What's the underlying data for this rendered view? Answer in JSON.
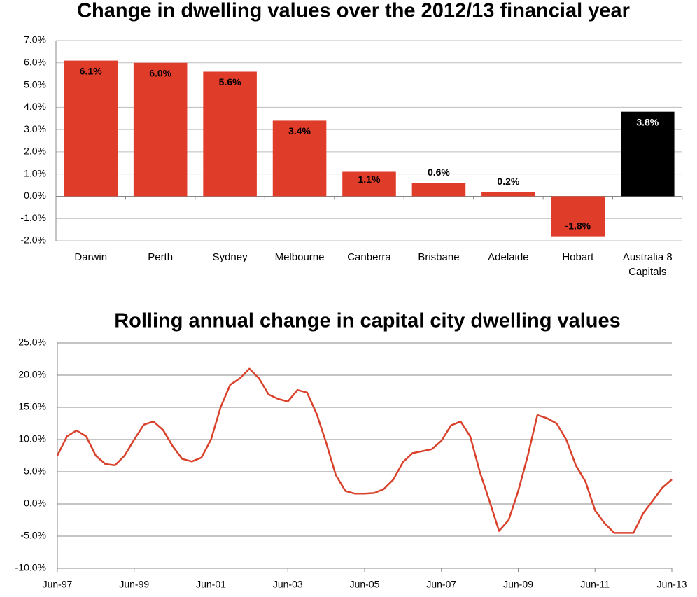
{
  "chart_data": [
    {
      "type": "bar",
      "title": "Change in dwelling values over the 2012/13 financial year",
      "categories": [
        "Darwin",
        "Perth",
        "Sydney",
        "Melbourne",
        "Canberra",
        "Brisbane",
        "Adelaide",
        "Hobart",
        "Australia 8 Capitals"
      ],
      "values": [
        6.1,
        6.0,
        5.6,
        3.4,
        1.1,
        0.6,
        0.2,
        -1.8,
        3.8
      ],
      "value_labels": [
        "6.1%",
        "6.0%",
        "5.6%",
        "3.4%",
        "1.1%",
        "0.6%",
        "0.2%",
        "-1.8%",
        "3.8%"
      ],
      "colors": [
        "#e03c2a",
        "#e03c2a",
        "#e03c2a",
        "#e03c2a",
        "#e03c2a",
        "#e03c2a",
        "#e03c2a",
        "#e03c2a",
        "#000000"
      ],
      "ylim": [
        -2,
        7
      ],
      "yticks": [
        {
          "value": -2,
          "label": "-2.0%"
        },
        {
          "value": -1,
          "label": "-1.0%"
        },
        {
          "value": 0,
          "label": "0.0%"
        },
        {
          "value": 1,
          "label": "1.0%"
        },
        {
          "value": 2,
          "label": "2.0%"
        },
        {
          "value": 3,
          "label": "3.0%"
        },
        {
          "value": 4,
          "label": "4.0%"
        },
        {
          "value": 5,
          "label": "5.0%"
        },
        {
          "value": 6,
          "label": "6.0%"
        },
        {
          "value": 7,
          "label": "7.0%"
        }
      ],
      "grid": true
    },
    {
      "type": "line",
      "title": "Rolling annual change in capital city dwelling values",
      "x": [
        1997.5,
        1997.75,
        1998,
        1998.25,
        1998.5,
        1998.75,
        1999,
        1999.25,
        1999.5,
        1999.75,
        2000,
        2000.25,
        2000.5,
        2000.75,
        2001,
        2001.25,
        2001.5,
        2001.75,
        2002,
        2002.25,
        2002.5,
        2002.75,
        2003,
        2003.25,
        2003.5,
        2003.75,
        2004,
        2004.25,
        2004.5,
        2004.75,
        2005,
        2005.25,
        2005.5,
        2005.75,
        2006,
        2006.25,
        2006.5,
        2006.75,
        2007,
        2007.25,
        2007.5,
        2007.75,
        2008,
        2008.25,
        2008.5,
        2008.75,
        2009,
        2009.25,
        2009.5,
        2009.75,
        2010,
        2010.25,
        2010.5,
        2010.75,
        2011,
        2011.25,
        2011.5,
        2011.75,
        2012,
        2012.25,
        2012.5,
        2012.75,
        2013,
        2013.25,
        2013.5
      ],
      "values": [
        7.5,
        10.5,
        11.4,
        10.5,
        7.5,
        6.2,
        6.0,
        7.5,
        10.0,
        12.3,
        12.8,
        11.5,
        9.0,
        7.0,
        6.6,
        7.2,
        10.0,
        15.0,
        18.5,
        19.5,
        21.0,
        19.5,
        17.0,
        16.3,
        15.9,
        17.7,
        17.3,
        14.0,
        9.5,
        4.5,
        2.0,
        1.6,
        1.6,
        1.7,
        2.3,
        3.8,
        6.5,
        7.9,
        8.2,
        8.5,
        9.8,
        12.2,
        12.8,
        10.5,
        5.0,
        0.5,
        -4.2,
        -2.5,
        2.0,
        7.5,
        13.8,
        13.3,
        12.5,
        10.0,
        6.0,
        3.5,
        -1.0,
        -3.0,
        -4.5,
        -4.5,
        -4.5,
        -1.5,
        0.5,
        2.5,
        3.8
      ],
      "color": "#d9412b",
      "xlim": [
        1997.5,
        2013.5
      ],
      "xticks": [
        {
          "value": 1997.5,
          "label": "Jun-97"
        },
        {
          "value": 1999.5,
          "label": "Jun-99"
        },
        {
          "value": 2001.5,
          "label": "Jun-01"
        },
        {
          "value": 2003.5,
          "label": "Jun-03"
        },
        {
          "value": 2005.5,
          "label": "Jun-05"
        },
        {
          "value": 2007.5,
          "label": "Jun-07"
        },
        {
          "value": 2009.5,
          "label": "Jun-09"
        },
        {
          "value": 2011.5,
          "label": "Jun-11"
        },
        {
          "value": 2013.5,
          "label": "Jun-13"
        }
      ],
      "ylim": [
        -10,
        25
      ],
      "yticks": [
        {
          "value": -10,
          "label": "-10.0%"
        },
        {
          "value": -5,
          "label": "-5.0%"
        },
        {
          "value": 0,
          "label": "0.0%"
        },
        {
          "value": 5,
          "label": "5.0%"
        },
        {
          "value": 10,
          "label": "10.0%"
        },
        {
          "value": 15,
          "label": "15.0%"
        },
        {
          "value": 20,
          "label": "20.0%"
        },
        {
          "value": 25,
          "label": "25.0%"
        }
      ],
      "grid": true
    }
  ]
}
